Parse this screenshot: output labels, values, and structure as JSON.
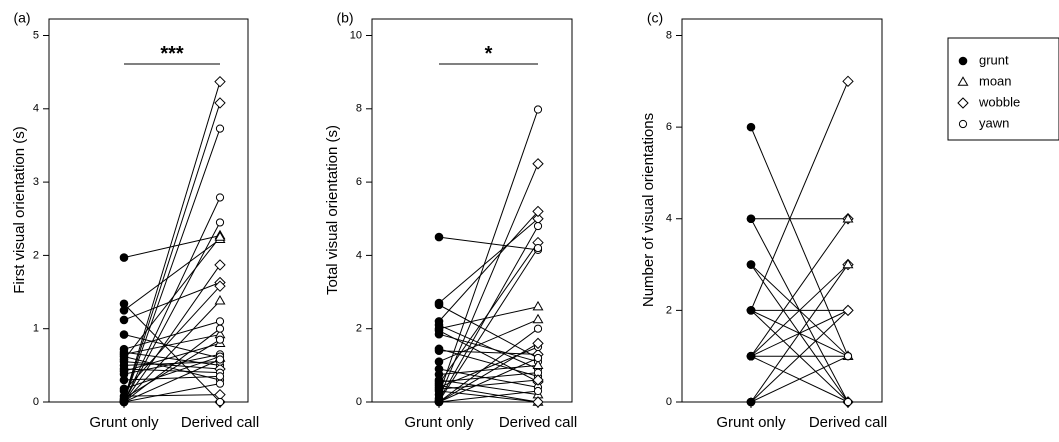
{
  "chart_data": [
    {
      "type": "scatter",
      "panel_label": "(a)",
      "ylabel": "First visual orientation (s)",
      "categories": [
        "Grunt only",
        "Derived call"
      ],
      "ylim": [
        0,
        5
      ],
      "yticks": [
        "0",
        "1",
        "2",
        "3",
        "4",
        "5"
      ],
      "significance": "***",
      "pairs": [
        {
          "grunt_only": 1.97,
          "derived": 2.27,
          "marker": "moan"
        },
        {
          "grunt_only": 1.34,
          "derived": 0.0,
          "marker": "wobble"
        },
        {
          "grunt_only": 1.25,
          "derived": 2.22,
          "marker": "moan"
        },
        {
          "grunt_only": 1.12,
          "derived": 1.63,
          "marker": "wobble"
        },
        {
          "grunt_only": 0.92,
          "derived": 0.6,
          "marker": "moan"
        },
        {
          "grunt_only": 0.72,
          "derived": 1.1,
          "marker": "yawn"
        },
        {
          "grunt_only": 0.68,
          "derived": 0.5,
          "marker": "yawn"
        },
        {
          "grunt_only": 0.65,
          "derived": 0.92,
          "marker": "moan"
        },
        {
          "grunt_only": 0.62,
          "derived": 0.3,
          "marker": "yawn"
        },
        {
          "grunt_only": 0.58,
          "derived": 2.25,
          "marker": "moan"
        },
        {
          "grunt_only": 0.55,
          "derived": 0.45,
          "marker": "wobble"
        },
        {
          "grunt_only": 0.5,
          "derived": 0.55,
          "marker": "yawn"
        },
        {
          "grunt_only": 0.45,
          "derived": 0.4,
          "marker": "yawn"
        },
        {
          "grunt_only": 0.42,
          "derived": 0.8,
          "marker": "moan"
        },
        {
          "grunt_only": 0.38,
          "derived": 0.65,
          "marker": "yawn"
        },
        {
          "grunt_only": 0.3,
          "derived": 0.35,
          "marker": "yawn"
        },
        {
          "grunt_only": 0.18,
          "derived": 0.62,
          "marker": "yawn"
        },
        {
          "grunt_only": 0.15,
          "derived": 1.58,
          "marker": "wobble"
        },
        {
          "grunt_only": 0.08,
          "derived": 0.1,
          "marker": "wobble"
        },
        {
          "grunt_only": 0.05,
          "derived": 0.85,
          "marker": "yawn"
        },
        {
          "grunt_only": 0.03,
          "derived": 4.37,
          "marker": "wobble"
        },
        {
          "grunt_only": 0.02,
          "derived": 4.08,
          "marker": "wobble"
        },
        {
          "grunt_only": 0.01,
          "derived": 3.73,
          "marker": "yawn"
        },
        {
          "grunt_only": 0.0,
          "derived": 2.79,
          "marker": "yawn"
        },
        {
          "grunt_only": 0.0,
          "derived": 2.45,
          "marker": "yawn"
        },
        {
          "grunt_only": 0.0,
          "derived": 1.87,
          "marker": "wobble"
        },
        {
          "grunt_only": 0.0,
          "derived": 1.38,
          "marker": "moan"
        },
        {
          "grunt_only": 0.0,
          "derived": 1.0,
          "marker": "yawn"
        },
        {
          "grunt_only": 0.0,
          "derived": 0.58,
          "marker": "yawn"
        },
        {
          "grunt_only": 0.0,
          "derived": 0.0,
          "marker": "yawn"
        },
        {
          "grunt_only": 0.0,
          "derived": 0.25,
          "marker": "yawn"
        }
      ]
    },
    {
      "type": "scatter",
      "panel_label": "(b)",
      "ylabel": "Total visual orientation (s)",
      "categories": [
        "Grunt only",
        "Derived call"
      ],
      "ylim": [
        0,
        10
      ],
      "yticks": [
        "0",
        "2",
        "4",
        "6",
        "8",
        "10"
      ],
      "significance": "*",
      "pairs": [
        {
          "grunt_only": 4.5,
          "derived": 4.15,
          "marker": "yawn"
        },
        {
          "grunt_only": 2.7,
          "derived": 5.0,
          "marker": "wobble"
        },
        {
          "grunt_only": 2.65,
          "derived": 1.2,
          "marker": "yawn"
        },
        {
          "grunt_only": 2.2,
          "derived": 5.2,
          "marker": "wobble"
        },
        {
          "grunt_only": 2.1,
          "derived": 0.9,
          "marker": "yawn"
        },
        {
          "grunt_only": 2.0,
          "derived": 2.6,
          "marker": "moan"
        },
        {
          "grunt_only": 1.95,
          "derived": 0.55,
          "marker": "wobble"
        },
        {
          "grunt_only": 1.85,
          "derived": 1.1,
          "marker": "yawn"
        },
        {
          "grunt_only": 1.45,
          "derived": 0.7,
          "marker": "yawn"
        },
        {
          "grunt_only": 1.4,
          "derived": 1.3,
          "marker": "wobble"
        },
        {
          "grunt_only": 1.1,
          "derived": 2.25,
          "marker": "moan"
        },
        {
          "grunt_only": 0.9,
          "derived": 0.4,
          "marker": "yawn"
        },
        {
          "grunt_only": 0.75,
          "derived": 1.0,
          "marker": "moan"
        },
        {
          "grunt_only": 0.6,
          "derived": 0.2,
          "marker": "moan"
        },
        {
          "grunt_only": 0.55,
          "derived": 0.8,
          "marker": "yawn"
        },
        {
          "grunt_only": 0.5,
          "derived": 4.35,
          "marker": "wobble"
        },
        {
          "grunt_only": 0.45,
          "derived": 0.0,
          "marker": "moan"
        },
        {
          "grunt_only": 0.4,
          "derived": 1.5,
          "marker": "yawn"
        },
        {
          "grunt_only": 0.35,
          "derived": 0.6,
          "marker": "wobble"
        },
        {
          "grunt_only": 0.3,
          "derived": 0.0,
          "marker": "wobble"
        },
        {
          "grunt_only": 0.2,
          "derived": 7.98,
          "marker": "yawn"
        },
        {
          "grunt_only": 0.1,
          "derived": 6.5,
          "marker": "wobble"
        },
        {
          "grunt_only": 0.05,
          "derived": 4.8,
          "marker": "yawn"
        },
        {
          "grunt_only": 0.02,
          "derived": 4.2,
          "marker": "yawn"
        },
        {
          "grunt_only": 0.0,
          "derived": 2.0,
          "marker": "yawn"
        },
        {
          "grunt_only": 0.0,
          "derived": 1.6,
          "marker": "wobble"
        },
        {
          "grunt_only": 0.0,
          "derived": 1.2,
          "marker": "yawn"
        },
        {
          "grunt_only": 0.0,
          "derived": 0.3,
          "marker": "yawn"
        }
      ]
    },
    {
      "type": "scatter",
      "panel_label": "(c)",
      "ylabel": "Number of visual orientations",
      "categories": [
        "Grunt only",
        "Derived call"
      ],
      "ylim": [
        0,
        8
      ],
      "yticks": [
        "0",
        "2",
        "4",
        "6",
        "8"
      ],
      "significance": "",
      "pairs": [
        {
          "grunt_only": 6,
          "derived": 1,
          "marker": "moan"
        },
        {
          "grunt_only": 4,
          "derived": 4,
          "marker": "wobble"
        },
        {
          "grunt_only": 4,
          "derived": 0,
          "marker": "yawn"
        },
        {
          "grunt_only": 3,
          "derived": 1,
          "marker": "yawn"
        },
        {
          "grunt_only": 3,
          "derived": 0,
          "marker": "wobble"
        },
        {
          "grunt_only": 2,
          "derived": 7,
          "marker": "wobble"
        },
        {
          "grunt_only": 2,
          "derived": 2,
          "marker": "yawn"
        },
        {
          "grunt_only": 2,
          "derived": 1,
          "marker": "moan"
        },
        {
          "grunt_only": 2,
          "derived": 0,
          "marker": "yawn"
        },
        {
          "grunt_only": 1,
          "derived": 4,
          "marker": "moan"
        },
        {
          "grunt_only": 1,
          "derived": 3,
          "marker": "wobble"
        },
        {
          "grunt_only": 1,
          "derived": 2,
          "marker": "yawn"
        },
        {
          "grunt_only": 1,
          "derived": 1,
          "marker": "yawn"
        },
        {
          "grunt_only": 1,
          "derived": 0,
          "marker": "wobble"
        },
        {
          "grunt_only": 0,
          "derived": 3,
          "marker": "moan"
        },
        {
          "grunt_only": 0,
          "derived": 2,
          "marker": "wobble"
        },
        {
          "grunt_only": 0,
          "derived": 1,
          "marker": "yawn"
        },
        {
          "grunt_only": 0,
          "derived": 0,
          "marker": "yawn"
        }
      ]
    }
  ],
  "legend": {
    "placement": "right",
    "entries": [
      {
        "label": "grunt",
        "marker": "grunt"
      },
      {
        "label": "moan",
        "marker": "moan"
      },
      {
        "label": "wobble",
        "marker": "wobble"
      },
      {
        "label": "yawn",
        "marker": "yawn"
      }
    ]
  },
  "colors": {
    "ink": "#000000",
    "background": "#ffffff"
  }
}
